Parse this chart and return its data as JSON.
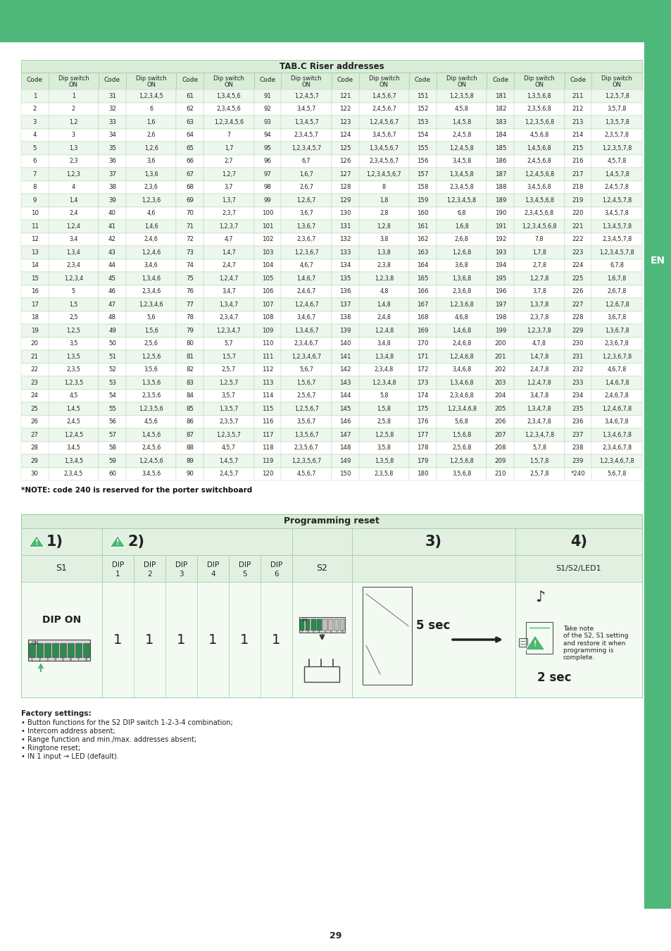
{
  "title": "TAB.C Riser addresses",
  "bg_color": "#ffffff",
  "top_bar_color": "#4db87a",
  "side_bar_color": "#4db87a",
  "green_light": "#d9edd9",
  "green_lighter": "#edf7ed",
  "green_header": "#c5e3c5",
  "border_color": "#8cc88c",
  "text_color": "#222222",
  "note_text": "*NOTE: code 240 is reserved for the porter switchboard",
  "programming_title": "Programming reset",
  "factory_title": "Factory settings:",
  "factory_bullets": [
    "Button functions for the S2 DIP switch 1-2-3-4 combination;",
    "Intercom address absent;",
    "Range function and min./max. addresses absent;",
    "Ringtone reset;",
    "IN 1 input → LED (default)."
  ],
  "page_number": "29",
  "table_data": [
    [
      1,
      "1",
      31,
      "1,2,3,4,5",
      61,
      "1,3,4,5,6",
      91,
      "1,2,4,5,7",
      121,
      "1,4,5,6,7",
      151,
      "1,2,3,5,8",
      181,
      "1,3,5,6,8",
      211,
      "1,2,5,7,8"
    ],
    [
      2,
      "2",
      32,
      "6",
      62,
      "2,3,4,5,6",
      92,
      "3,4,5,7",
      122,
      "2,4,5,6,7",
      152,
      "4,5,8",
      182,
      "2,3,5,6,8",
      212,
      "3,5,7,8"
    ],
    [
      3,
      "1,2",
      33,
      "1,6",
      63,
      "1,2,3,4,5,6",
      93,
      "1,3,4,5,7",
      123,
      "1,2,4,5,6,7",
      153,
      "1,4,5,8",
      183,
      "1,2,3,5,6,8",
      213,
      "1,3,5,7,8"
    ],
    [
      4,
      "3",
      34,
      "2,6",
      64,
      "7",
      94,
      "2,3,4,5,7",
      124,
      "3,4,5,6,7",
      154,
      "2,4,5,8",
      184,
      "4,5,6,8",
      214,
      "2,3,5,7,8"
    ],
    [
      5,
      "1,3",
      35,
      "1,2,6",
      65,
      "1,7",
      95,
      "1,2,3,4,5,7",
      125,
      "1,3,4,5,6,7",
      155,
      "1,2,4,5,8",
      185,
      "1,4,5,6,8",
      215,
      "1,2,3,5,7,8"
    ],
    [
      6,
      "2,3",
      36,
      "3,6",
      66,
      "2,7",
      96,
      "6,7",
      126,
      "2,3,4,5,6,7",
      156,
      "3,4,5,8",
      186,
      "2,4,5,6,8",
      216,
      "4,5,7,8"
    ],
    [
      7,
      "1,2,3",
      37,
      "1,3,6",
      67,
      "1,2,7",
      97,
      "1,6,7",
      127,
      "1,2,3,4,5,6,7",
      157,
      "1,3,4,5,8",
      187,
      "1,2,4,5,6,8",
      217,
      "1,4,5,7,8"
    ],
    [
      8,
      "4",
      38,
      "2,3,6",
      68,
      "3,7",
      98,
      "2,6,7",
      128,
      "8",
      158,
      "2,3,4,5,8",
      188,
      "3,4,5,6,8",
      218,
      "2,4,5,7,8"
    ],
    [
      9,
      "1,4",
      39,
      "1,2,3,6",
      69,
      "1,3,7",
      99,
      "1,2,6,7",
      129,
      "1,8",
      159,
      "1,2,3,4,5,8",
      189,
      "1,3,4,5,6,8",
      219,
      "1,2,4,5,7,8"
    ],
    [
      10,
      "2,4",
      40,
      "4,6",
      70,
      "2,3,7",
      100,
      "3,6,7",
      130,
      "2,8",
      160,
      "6,8",
      190,
      "2,3,4,5,6,8",
      220,
      "3,4,5,7,8"
    ],
    [
      11,
      "1,2,4",
      41,
      "1,4,6",
      71,
      "1,2,3,7",
      101,
      "1,3,6,7",
      131,
      "1,2,8",
      161,
      "1,6,8",
      191,
      "1,2,3,4,5,6,8",
      221,
      "1,3,4,5,7,8"
    ],
    [
      12,
      "3,4",
      42,
      "2,4,6",
      72,
      "4,7",
      102,
      "2,3,6,7",
      132,
      "3,8",
      162,
      "2,6,8",
      192,
      "7,8",
      222,
      "2,3,4,5,7,8"
    ],
    [
      13,
      "1,3,4",
      43,
      "1,2,4,6",
      73,
      "1,4,7",
      103,
      "1,2,3,6,7",
      133,
      "1,3,8",
      163,
      "1,2,6,8",
      193,
      "1,7,8",
      223,
      "1,2,3,4,5,7,8"
    ],
    [
      14,
      "2,3,4",
      44,
      "3,4,6",
      74,
      "2,4,7",
      104,
      "4,6,7",
      134,
      "2,3,8",
      164,
      "3,6,8",
      194,
      "2,7,8",
      224,
      "6,7,8"
    ],
    [
      15,
      "1,2,3,4",
      45,
      "1,3,4,6",
      75,
      "1,2,4,7",
      105,
      "1,4,6,7",
      135,
      "1,2,3,8",
      165,
      "1,3,6,8",
      195,
      "1,2,7,8",
      225,
      "1,6,7,8"
    ],
    [
      16,
      "5",
      46,
      "2,3,4,6",
      76,
      "3,4,7",
      106,
      "2,4,6,7",
      136,
      "4,8",
      166,
      "2,3,6,8",
      196,
      "3,7,8",
      226,
      "2,6,7,8"
    ],
    [
      17,
      "1,5",
      47,
      "1,2,3,4,6",
      77,
      "1,3,4,7",
      107,
      "1,2,4,6,7",
      137,
      "1,4,8",
      167,
      "1,2,3,6,8",
      197,
      "1,3,7,8",
      227,
      "1,2,6,7,8"
    ],
    [
      18,
      "2,5",
      48,
      "5,6",
      78,
      "2,3,4,7",
      108,
      "3,4,6,7",
      138,
      "2,4,8",
      168,
      "4,6,8",
      198,
      "2,3,7,8",
      228,
      "3,6,7,8"
    ],
    [
      19,
      "1,2,5",
      49,
      "1,5,6",
      79,
      "1,2,3,4,7",
      109,
      "1,3,4,6,7",
      139,
      "1,2,4,8",
      169,
      "1,4,6,8",
      199,
      "1,2,3,7,8",
      229,
      "1,3,6,7,8"
    ],
    [
      20,
      "3,5",
      50,
      "2,5,6",
      80,
      "5,7",
      110,
      "2,3,4,6,7",
      140,
      "3,4,8",
      170,
      "2,4,6,8",
      200,
      "4,7,8",
      230,
      "2,3,6,7,8"
    ],
    [
      21,
      "1,3,5",
      51,
      "1,2,5,6",
      81,
      "1,5,7",
      111,
      "1,2,3,4,6,7",
      141,
      "1,3,4,8",
      171,
      "1,2,4,6,8",
      201,
      "1,4,7,8",
      231,
      "1,2,3,6,7,8"
    ],
    [
      22,
      "2,3,5",
      52,
      "3,5,6",
      82,
      "2,5,7",
      112,
      "5,6,7",
      142,
      "2,3,4,8",
      172,
      "3,4,6,8",
      202,
      "2,4,7,8",
      232,
      "4,6,7,8"
    ],
    [
      23,
      "1,2,3,5",
      53,
      "1,3,5,6",
      83,
      "1,2,5,7",
      113,
      "1,5,6,7",
      143,
      "1,2,3,4,8",
      173,
      "1,3,4,6,8",
      203,
      "1,2,4,7,8",
      233,
      "1,4,6,7,8"
    ],
    [
      24,
      "4,5",
      54,
      "2,3,5,6",
      84,
      "3,5,7",
      114,
      "2,5,6,7",
      144,
      "5,8",
      174,
      "2,3,4,6,8",
      204,
      "3,4,7,8",
      234,
      "2,4,6,7,8"
    ],
    [
      25,
      "1,4,5",
      55,
      "1,2,3,5,6",
      85,
      "1,3,5,7",
      115,
      "1,2,5,6,7",
      145,
      "1,5,8",
      175,
      "1,2,3,4,6,8",
      205,
      "1,3,4,7,8",
      235,
      "1,2,4,6,7,8"
    ],
    [
      26,
      "2,4,5",
      56,
      "4,5,6",
      86,
      "2,3,5,7",
      116,
      "3,5,6,7",
      146,
      "2,5,8",
      176,
      "5,6,8",
      206,
      "2,3,4,7,8",
      236,
      "3,4,6,7,8"
    ],
    [
      27,
      "1,2,4,5",
      57,
      "1,4,5,6",
      87,
      "1,2,3,5,7",
      117,
      "1,3,5,6,7",
      147,
      "1,2,5,8",
      177,
      "1,5,6,8",
      207,
      "1,2,3,4,7,8",
      237,
      "1,3,4,6,7,8"
    ],
    [
      28,
      "3,4,5",
      58,
      "2,4,5,6",
      88,
      "4,5,7",
      118,
      "2,3,5,6,7",
      148,
      "3,5,8",
      178,
      "2,5,6,8",
      208,
      "5,7,8",
      238,
      "2,3,4,6,7,8"
    ],
    [
      29,
      "1,3,4,5",
      59,
      "1,2,4,5,6",
      89,
      "1,4,5,7",
      119,
      "1,2,3,5,6,7",
      149,
      "1,3,5,8",
      179,
      "1,2,5,6,8",
      209,
      "1,5,7,8",
      239,
      "1,2,3,4,6,7,8"
    ],
    [
      30,
      "2,3,4,5",
      60,
      "3,4,5,6",
      90,
      "2,4,5,7",
      120,
      "4,5,6,7",
      150,
      "2,3,5,8",
      180,
      "3,5,6,8",
      210,
      "2,5,7,8",
      "*240",
      "5,6,7,8"
    ]
  ]
}
